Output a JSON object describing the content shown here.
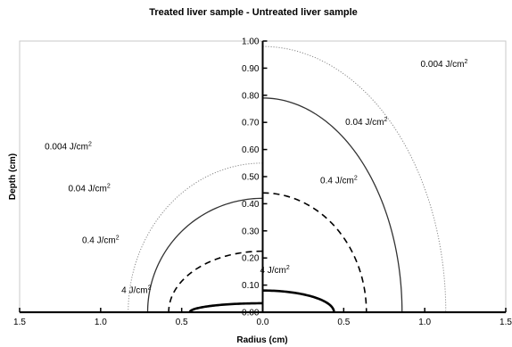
{
  "chart_data": {
    "type": "line",
    "title": "Treated liver sample - Untreated liver sample",
    "xlabel": "Radius (cm)",
    "ylabel": "Depth (cm)",
    "xlim": [
      -1.5,
      1.5
    ],
    "ylim": [
      0,
      1.0
    ],
    "x_tick_labels": [
      "1.5",
      "1.0",
      "0.5",
      "0.0",
      "0.5",
      "1.0",
      "1.5"
    ],
    "y_tick_labels": [
      "0.00",
      "0.10",
      "0.20",
      "0.30",
      "0.40",
      "0.50",
      "0.60",
      "0.70",
      "0.80",
      "0.90",
      "1.00"
    ],
    "grid": false,
    "legend": "none",
    "panels": [
      {
        "name": "Treated liver sample",
        "side": "left",
        "contours": [
          {
            "fluence_label": "0.004 J/cm",
            "radius_cm": 0.83,
            "depth_cm": 0.55,
            "style": "dotted",
            "color": "#888888"
          },
          {
            "fluence_label": "0.04 J/cm",
            "radius_cm": 0.71,
            "depth_cm": 0.42,
            "style": "solid",
            "color": "#333333"
          },
          {
            "fluence_label": "0.4 J/cm",
            "radius_cm": 0.58,
            "depth_cm": 0.225,
            "style": "dashed",
            "color": "#000000"
          },
          {
            "fluence_label": "4 J/cm",
            "radius_cm": 0.45,
            "depth_cm": 0.033,
            "style": "solid-thick",
            "color": "#000000"
          }
        ]
      },
      {
        "name": "Untreated liver sample",
        "side": "right",
        "contours": [
          {
            "fluence_label": "0.004 J/cm",
            "radius_cm": 1.13,
            "depth_cm": 0.98,
            "style": "dotted",
            "color": "#888888"
          },
          {
            "fluence_label": "0.04 J/cm",
            "radius_cm": 0.86,
            "depth_cm": 0.79,
            "style": "solid",
            "color": "#333333"
          },
          {
            "fluence_label": "0.4 J/cm",
            "radius_cm": 0.64,
            "depth_cm": 0.44,
            "style": "dashed",
            "color": "#000000"
          },
          {
            "fluence_label": "4 J/cm",
            "radius_cm": 0.44,
            "depth_cm": 0.08,
            "style": "solid-thick",
            "color": "#000000"
          }
        ]
      }
    ],
    "annotations": [
      {
        "text": "0.004 J/cm",
        "sup": "2",
        "x": 1.12,
        "y": 0.905
      },
      {
        "text": "0.04 J/cm",
        "sup": "2",
        "x": 0.64,
        "y": 0.69
      },
      {
        "text": "0.4 J/cm",
        "sup": "2",
        "x": 0.47,
        "y": 0.475
      },
      {
        "text": "4 J/cm",
        "sup": "2",
        "x": 0.075,
        "y": 0.145
      },
      {
        "text": "0.004 J/cm",
        "sup": "2",
        "x": -1.2,
        "y": 0.6
      },
      {
        "text": "0.04 J/cm",
        "sup": "2",
        "x": -1.07,
        "y": 0.445
      },
      {
        "text": "0.4 J/cm",
        "sup": "2",
        "x": -1.0,
        "y": 0.255
      },
      {
        "text": "4 J/cm",
        "sup": "2",
        "x": -0.78,
        "y": 0.07
      }
    ]
  }
}
